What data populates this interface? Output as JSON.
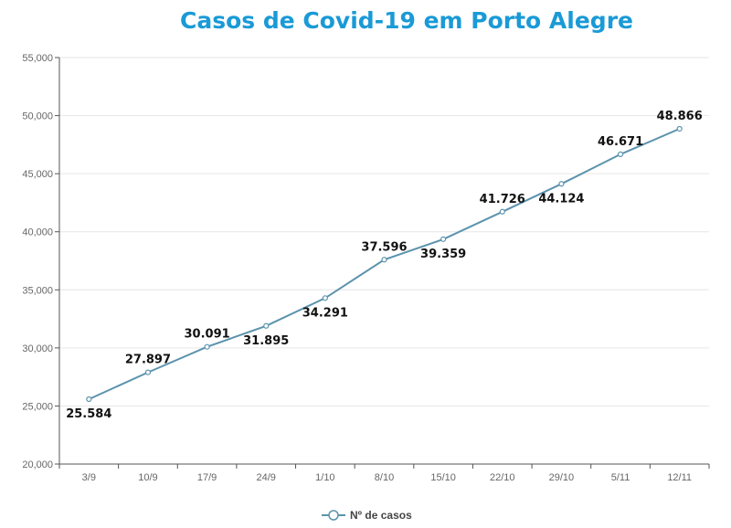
{
  "chart_data": {
    "type": "line",
    "title": "Casos de Covid-19 em Porto Alegre",
    "xlabel": "",
    "ylabel": "",
    "categories": [
      "3/9",
      "10/9",
      "17/9",
      "24/9",
      "1/10",
      "8/10",
      "15/10",
      "22/10",
      "29/10",
      "5/11",
      "12/11"
    ],
    "series": [
      {
        "name": "Nº de casos",
        "values": [
          25584,
          27897,
          30091,
          31895,
          34291,
          37596,
          39359,
          41726,
          44124,
          46671,
          48866
        ],
        "labels": [
          "25.584",
          "27.897",
          "30.091",
          "31.895",
          "34.291",
          "37.596",
          "39.359",
          "41.726",
          "44.124",
          "46.671",
          "48.866"
        ],
        "label_position": [
          "below",
          "above",
          "above",
          "below",
          "below",
          "above",
          "below",
          "above",
          "below",
          "above",
          "above"
        ],
        "color": "#5b93ad"
      }
    ],
    "ylim": [
      20000,
      55000
    ],
    "yticks": [
      20000,
      25000,
      30000,
      35000,
      40000,
      45000,
      50000,
      55000
    ],
    "ytick_labels": [
      "20,000",
      "25,000",
      "30,000",
      "35,000",
      "40,000",
      "45,000",
      "50,000",
      "55,000"
    ],
    "grid": true,
    "legend_position": "bottom"
  },
  "colors": {
    "title": "#1a9ad6",
    "line": "#5b93ad",
    "grid": "#e6e6e6",
    "axis": "#555555"
  }
}
